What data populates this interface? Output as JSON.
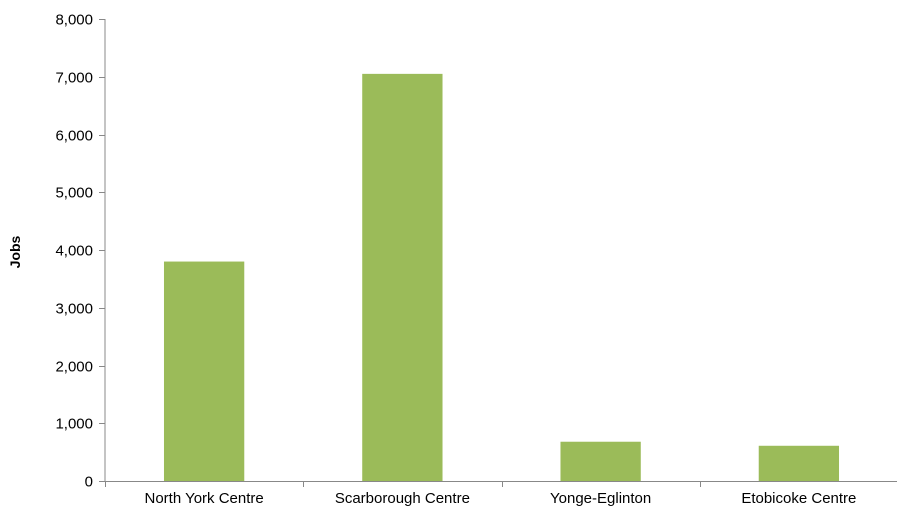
{
  "chart_data": {
    "type": "bar",
    "title": "",
    "xlabel": "",
    "ylabel": "Jobs",
    "categories": [
      "North York Centre",
      "Scarborough Centre",
      "Yonge-Eglinton",
      "Etobicoke Centre"
    ],
    "values": [
      3800,
      7050,
      680,
      610
    ],
    "ylim": [
      0,
      8000
    ],
    "yticks": [
      0,
      1000,
      2000,
      3000,
      4000,
      5000,
      6000,
      7000,
      8000
    ],
    "ytick_labels": [
      "0",
      "1,000",
      "2,000",
      "3,000",
      "4,000",
      "5,000",
      "6,000",
      "7,000",
      "8,000"
    ],
    "grid": false,
    "legend": "none",
    "bar_color": "#9BBB59",
    "axis_color": "#888888"
  }
}
